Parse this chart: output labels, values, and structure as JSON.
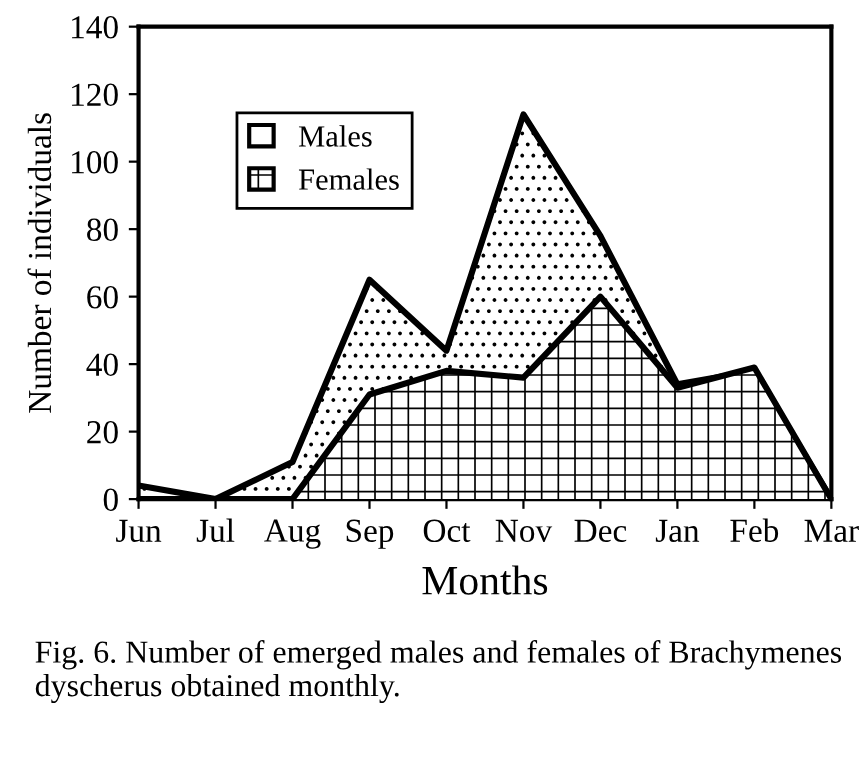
{
  "chart_data": {
    "type": "area",
    "xlabel": "Months",
    "ylabel": "Number of individuals",
    "categories": [
      "Jun",
      "Jul",
      "Aug",
      "Sep",
      "Oct",
      "Nov",
      "Dec",
      "Jan",
      "Feb",
      "Mar"
    ],
    "series": [
      {
        "name": "Males",
        "color": "#000000",
        "values": [
          4,
          0,
          11,
          65,
          44,
          114,
          78,
          34,
          38,
          0
        ]
      },
      {
        "name": "Females",
        "color": "#000000",
        "values": [
          0,
          0,
          0,
          31,
          38,
          36,
          60,
          33,
          39,
          0
        ]
      }
    ],
    "ylim": [
      0,
      140
    ],
    "yticks": [
      0,
      20,
      40,
      60,
      80,
      100,
      120,
      140
    ],
    "grid": false,
    "legend": "top left",
    "annotations": [
      "Fig. 6. Number of emerged males and females of Brachymenes dyscherus obtained monthly."
    ]
  }
}
